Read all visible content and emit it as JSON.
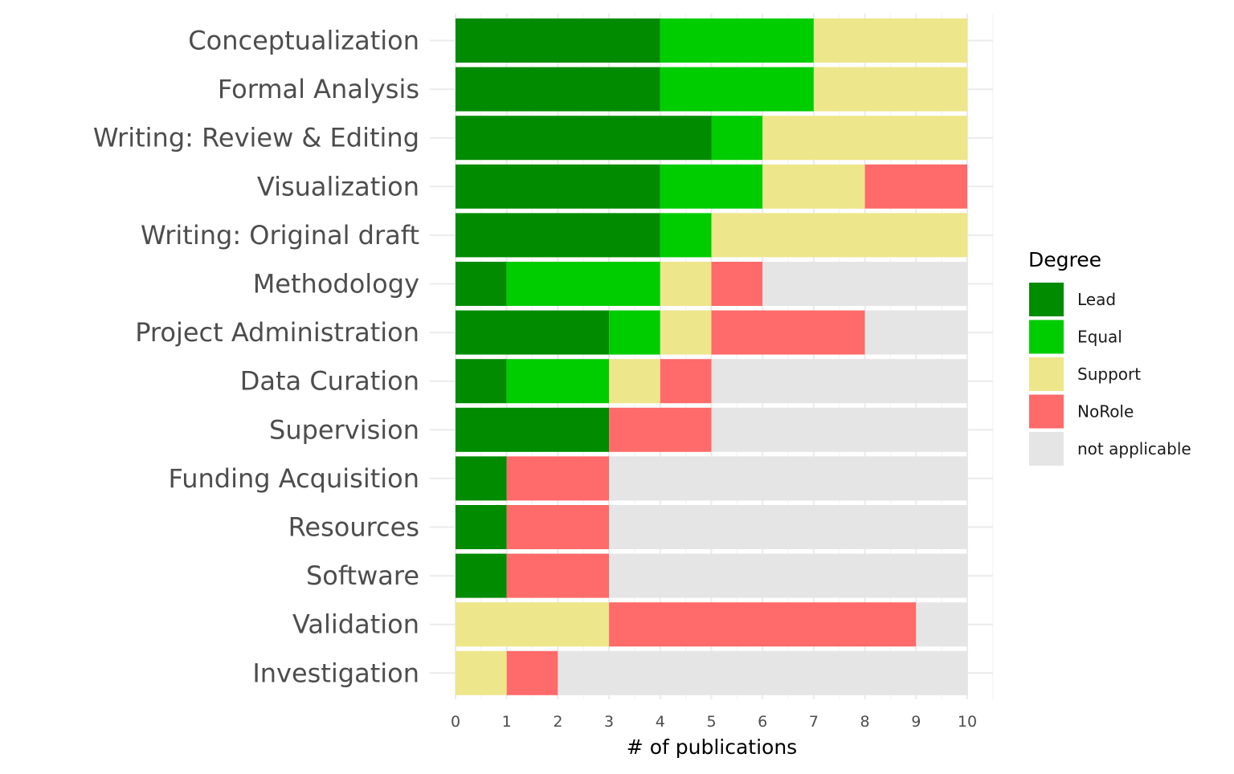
{
  "chart_data": {
    "type": "bar",
    "orientation": "horizontal",
    "stacked": true,
    "xlabel": "# of publications",
    "ylabel": "",
    "xlim": [
      0,
      10
    ],
    "x_ticks": [
      "0",
      "1",
      "2",
      "3",
      "4",
      "5",
      "6",
      "7",
      "8",
      "9",
      "10"
    ],
    "grid": true,
    "legend": {
      "title": "Degree",
      "position": "right",
      "entries": [
        {
          "name": "Lead",
          "color": "#008B00"
        },
        {
          "name": "Equal",
          "color": "#00CD00"
        },
        {
          "name": "Support",
          "color": "#EEE68B"
        },
        {
          "name": "NoRole",
          "color": "#FF6A6A"
        },
        {
          "name": "not applicable",
          "color": "#E5E5E5"
        }
      ]
    },
    "categories": [
      "Conceptualization",
      "Formal Analysis",
      "Writing: Review & Editing",
      "Visualization",
      "Writing: Original draft",
      "Methodology",
      "Project Administration",
      "Data Curation",
      "Supervision",
      "Funding Acquisition",
      "Resources",
      "Software",
      "Validation",
      "Investigation"
    ],
    "series": [
      {
        "name": "Lead",
        "values": [
          4,
          4,
          5,
          4,
          4,
          1,
          3,
          1,
          3,
          1,
          1,
          1,
          0,
          0
        ]
      },
      {
        "name": "Equal",
        "values": [
          3,
          3,
          1,
          2,
          1,
          3,
          1,
          2,
          0,
          0,
          0,
          0,
          0,
          0
        ]
      },
      {
        "name": "Support",
        "values": [
          3,
          3,
          4,
          2,
          5,
          1,
          1,
          1,
          0,
          0,
          0,
          0,
          3,
          1
        ]
      },
      {
        "name": "NoRole",
        "values": [
          0,
          0,
          0,
          2,
          0,
          1,
          3,
          1,
          2,
          2,
          2,
          2,
          6,
          1
        ]
      },
      {
        "name": "not applicable",
        "values": [
          0,
          0,
          0,
          0,
          0,
          4,
          2,
          5,
          5,
          7,
          7,
          7,
          1,
          8
        ]
      }
    ]
  }
}
